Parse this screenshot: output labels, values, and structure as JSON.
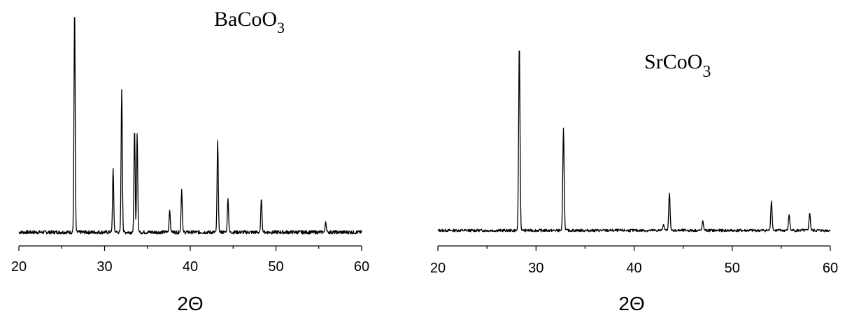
{
  "chart_data": [
    {
      "type": "line",
      "title": "BaCoO",
      "title_subscript": "3",
      "xlabel": "2Θ",
      "ylabel": "",
      "xlim": [
        20,
        60
      ],
      "ylim": [
        0,
        100
      ],
      "xticks": [
        "20",
        "30",
        "40",
        "50",
        "60"
      ],
      "grid": false,
      "baseline": 3.5,
      "peaks": [
        {
          "x": 26.5,
          "y": 100
        },
        {
          "x": 31.0,
          "y": 31
        },
        {
          "x": 32.0,
          "y": 65
        },
        {
          "x": 33.5,
          "y": 48
        },
        {
          "x": 33.8,
          "y": 46
        },
        {
          "x": 37.6,
          "y": 13
        },
        {
          "x": 39.0,
          "y": 22
        },
        {
          "x": 43.2,
          "y": 43
        },
        {
          "x": 44.4,
          "y": 18
        },
        {
          "x": 48.3,
          "y": 18
        },
        {
          "x": 55.8,
          "y": 8
        }
      ]
    },
    {
      "type": "line",
      "title": "SrCoO",
      "title_subscript": "3",
      "xlabel": "2Θ",
      "ylabel": "",
      "xlim": [
        20,
        60
      ],
      "ylim": [
        0,
        100
      ],
      "xticks": [
        "20",
        "30",
        "40",
        "50",
        "60"
      ],
      "grid": false,
      "baseline": 5,
      "peaks": [
        {
          "x": 28.3,
          "y": 100
        },
        {
          "x": 32.8,
          "y": 57
        },
        {
          "x": 43.0,
          "y": 8
        },
        {
          "x": 43.6,
          "y": 24
        },
        {
          "x": 47.0,
          "y": 10
        },
        {
          "x": 54.0,
          "y": 20
        },
        {
          "x": 55.8,
          "y": 13
        },
        {
          "x": 57.9,
          "y": 14
        }
      ]
    }
  ]
}
